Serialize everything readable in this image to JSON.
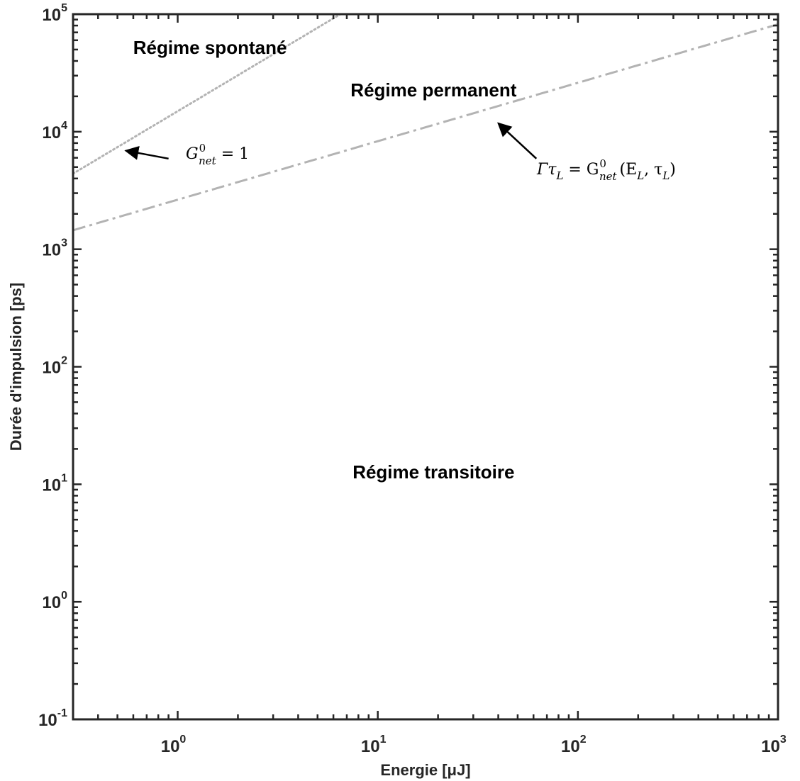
{
  "chart_data": {
    "type": "line",
    "xlabel": "Energie [μJ]",
    "ylabel": "Durée d'impulsion [ps]",
    "x_scale": "log",
    "y_scale": "log",
    "xlim": [
      0.3,
      1000
    ],
    "ylim": [
      0.1,
      100000
    ],
    "grid": false,
    "x_ticks": [
      {
        "value": 1,
        "base": "10",
        "exp": "0"
      },
      {
        "value": 10,
        "base": "10",
        "exp": "1"
      },
      {
        "value": 100,
        "base": "10",
        "exp": "2"
      },
      {
        "value": 1000,
        "base": "10",
        "exp": "3"
      }
    ],
    "y_ticks": [
      {
        "value": 0.1,
        "base": "10",
        "exp": "-1"
      },
      {
        "value": 1,
        "base": "10",
        "exp": "0"
      },
      {
        "value": 10,
        "base": "10",
        "exp": "1"
      },
      {
        "value": 100,
        "base": "10",
        "exp": "2"
      },
      {
        "value": 1000,
        "base": "10",
        "exp": "3"
      },
      {
        "value": 10000,
        "base": "10",
        "exp": "4"
      },
      {
        "value": 100000,
        "base": "10",
        "exp": "5"
      }
    ],
    "series": [
      {
        "style": "dotted",
        "color": "#b3b3b3",
        "x": [
          0.3,
          6.5
        ],
        "y": [
          4400,
          100000
        ]
      },
      {
        "style": "dash-dot",
        "color": "#b3b3b3",
        "x": [
          0.3,
          1000
        ],
        "y": [
          1450,
          82000
        ]
      }
    ],
    "annotations": [
      {
        "key": "spontane",
        "text": "Régime spontané",
        "x": 1.45,
        "y": 46000
      },
      {
        "key": "permanent",
        "text": "Régime permanent",
        "x": 19,
        "y": 20000
      },
      {
        "key": "transitoire",
        "text": "Régime transitoire",
        "x": 19,
        "y": 11.2
      }
    ],
    "equations": {
      "gnet": {
        "G": "G",
        "sup": "0",
        "sub": "net",
        "rest": " = 1"
      },
      "gamma": {
        "lhs1": "Γτ",
        "lhs_sub": "L",
        "eq": " = G",
        "sup": "0",
        "sub": "net",
        "arg1": "(E",
        "arg1_sub": "L",
        "arg2": ", τ",
        "arg2_sub": "L",
        "close": ")"
      }
    },
    "arrows": [
      {
        "from": {
          "x": 0.9,
          "y": 5900
        },
        "to": {
          "x": 0.55,
          "y": 6900
        }
      },
      {
        "from": {
          "x": 62,
          "y": 5900
        },
        "to": {
          "x": 40,
          "y": 11800
        }
      }
    ],
    "colors": {
      "axis": "#262626",
      "series": "#b3b3b3",
      "text": "#000000"
    }
  }
}
